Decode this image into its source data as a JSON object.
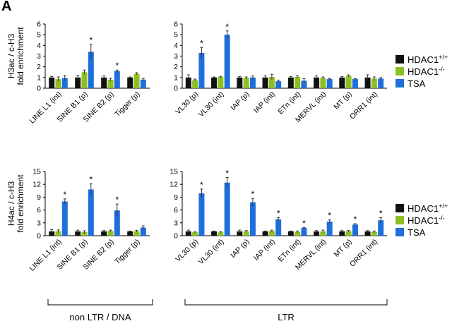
{
  "panel_label": "A",
  "legend": {
    "items": [
      {
        "name": "HDAC1",
        "sup": "+/+",
        "color": "#111111"
      },
      {
        "name": "HDAC1",
        "sup": "-/-",
        "color": "#8dbf22"
      },
      {
        "name": "TSA",
        "sup": "",
        "color": "#1f6fdb"
      }
    ]
  },
  "groups": {
    "left": "non LTR / DNA",
    "right": "LTR"
  },
  "chart_data": [
    {
      "type": "bar",
      "panel": "top-left",
      "ylabel_line1": "H3ac / c-H3",
      "ylabel_line2": "fold enrichment",
      "ylim": [
        0,
        6
      ],
      "yticks": [
        0,
        1,
        2,
        3,
        4,
        5,
        6
      ],
      "categories": [
        "LINE L1 (int)",
        "SINE B1 (p)",
        "SINE B2 (p)",
        "Tigger (p)"
      ],
      "series": [
        {
          "name": "HDAC1+/+",
          "values": [
            1.0,
            1.0,
            1.0,
            1.0
          ],
          "errors": [
            0.1,
            0.2,
            0.15,
            0.05
          ]
        },
        {
          "name": "HDAC1-/-",
          "values": [
            0.85,
            1.5,
            0.8,
            1.35
          ],
          "errors": [
            0.2,
            0.2,
            0.12,
            0.1
          ]
        },
        {
          "name": "TSA",
          "values": [
            0.95,
            3.4,
            1.6,
            0.8
          ],
          "errors": [
            0.25,
            0.7,
            0.1,
            0.1
          ]
        }
      ],
      "significant": [
        [],
        [
          2
        ],
        [
          2
        ],
        []
      ]
    },
    {
      "type": "bar",
      "panel": "top-right",
      "ylim": [
        0,
        6
      ],
      "yticks": [
        0,
        1,
        2,
        3,
        4,
        5,
        6
      ],
      "categories": [
        "VL30 (p)",
        "VL30 (int)",
        "IAP (p)",
        "IAP (int)",
        "ETn (int)",
        "MERVL (int)",
        "MT (p)",
        "ORR1 (int)"
      ],
      "series": [
        {
          "name": "HDAC1+/+",
          "values": [
            1.0,
            1.0,
            1.0,
            1.0,
            1.0,
            1.0,
            1.0,
            1.0
          ],
          "errors": [
            0.25,
            0.05,
            0.1,
            0.15,
            0.1,
            0.15,
            0.1,
            0.25
          ]
        },
        {
          "name": "HDAC1-/-",
          "values": [
            0.75,
            1.05,
            0.95,
            1.05,
            1.05,
            0.95,
            1.15,
            0.9
          ],
          "errors": [
            0.1,
            0.05,
            0.1,
            0.25,
            0.1,
            0.1,
            0.1,
            0.15
          ]
        },
        {
          "name": "TSA",
          "values": [
            3.3,
            5.0,
            1.0,
            0.65,
            0.7,
            0.85,
            0.85,
            0.9
          ],
          "errors": [
            0.5,
            0.35,
            0.15,
            0.1,
            0.2,
            0.05,
            0.05,
            0.1
          ]
        }
      ],
      "significant": [
        [
          2
        ],
        [
          2
        ],
        [],
        [],
        [],
        [],
        [],
        []
      ]
    },
    {
      "type": "bar",
      "panel": "bottom-left",
      "ylabel_line1": "H4ac / c-H3",
      "ylabel_line2": "fold enrichment",
      "ylim": [
        0,
        15
      ],
      "yticks": [
        0,
        3,
        6,
        9,
        12,
        15
      ],
      "categories": [
        "LINE L1 (int)",
        "SINE B1 (p)",
        "SINE B2 (p)",
        "Tigger (p)"
      ],
      "series": [
        {
          "name": "HDAC1+/+",
          "values": [
            1.0,
            1.0,
            1.0,
            1.0
          ],
          "errors": [
            0.4,
            0.3,
            0.2,
            0.1
          ]
        },
        {
          "name": "HDAC1-/-",
          "values": [
            1.05,
            0.85,
            1.1,
            1.05
          ],
          "errors": [
            0.3,
            0.3,
            0.2,
            0.2
          ]
        },
        {
          "name": "TSA",
          "values": [
            8.0,
            10.8,
            5.9,
            1.9
          ],
          "errors": [
            0.6,
            1.3,
            1.5,
            0.4
          ]
        }
      ],
      "significant": [
        [
          2
        ],
        [
          2
        ],
        [
          2
        ],
        []
      ]
    },
    {
      "type": "bar",
      "panel": "bottom-right",
      "ylim": [
        0,
        15
      ],
      "yticks": [
        0,
        3,
        6,
        9,
        12,
        15
      ],
      "categories": [
        "VL30 (p)",
        "VL30 (int)",
        "IAP (p)",
        "IAP (int)",
        "ETn (int)",
        "MERVL (int)",
        "MT (p)",
        "ORR1 (int)"
      ],
      "series": [
        {
          "name": "HDAC1+/+",
          "values": [
            1.0,
            1.0,
            1.0,
            1.0,
            1.0,
            1.0,
            1.0,
            1.0
          ],
          "errors": [
            0.3,
            0.1,
            0.3,
            0.1,
            0.1,
            0.2,
            0.2,
            0.2
          ]
        },
        {
          "name": "HDAC1-/-",
          "values": [
            0.8,
            0.8,
            1.0,
            1.1,
            0.9,
            1.0,
            1.05,
            0.9
          ],
          "errors": [
            0.1,
            0.1,
            0.2,
            0.2,
            0.2,
            0.3,
            0.2,
            0.2
          ]
        },
        {
          "name": "TSA",
          "values": [
            9.9,
            12.4,
            7.8,
            3.8,
            1.8,
            3.3,
            2.6,
            3.6
          ],
          "errors": [
            1.0,
            1.2,
            0.9,
            0.4,
            0.1,
            0.4,
            0.2,
            0.6
          ]
        }
      ],
      "significant": [
        [
          2
        ],
        [
          2
        ],
        [
          2
        ],
        [
          2
        ],
        [
          2
        ],
        [
          2
        ],
        [
          2
        ],
        [
          2
        ]
      ]
    }
  ]
}
